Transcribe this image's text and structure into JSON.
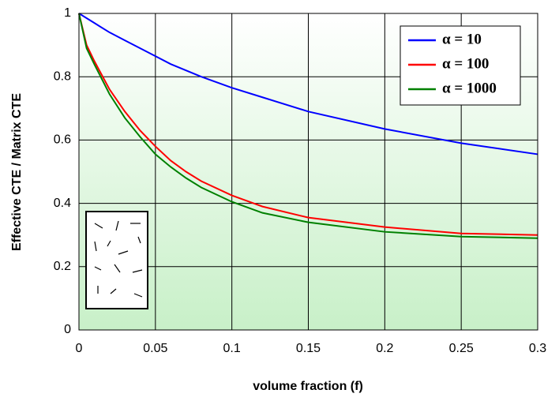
{
  "chart_data": {
    "type": "line",
    "x_label": "volume fraction (f)",
    "y_label": "Effective CTE / Matrix CTE",
    "x": [
      0,
      0.005,
      0.01,
      0.02,
      0.03,
      0.04,
      0.05,
      0.06,
      0.07,
      0.08,
      0.1,
      0.12,
      0.15,
      0.2,
      0.25,
      0.3
    ],
    "series": [
      {
        "name": "α = 10",
        "color": "#0000ff",
        "values": [
          1,
          0.985,
          0.97,
          0.94,
          0.915,
          0.89,
          0.865,
          0.84,
          0.82,
          0.8,
          0.765,
          0.735,
          0.69,
          0.635,
          0.59,
          0.555
        ]
      },
      {
        "name": "α = 100",
        "color": "#ff0000",
        "values": [
          1,
          0.9,
          0.85,
          0.76,
          0.69,
          0.63,
          0.58,
          0.535,
          0.5,
          0.47,
          0.425,
          0.39,
          0.355,
          0.325,
          0.305,
          0.3
        ]
      },
      {
        "name": "α = 1000",
        "color": "#008000",
        "values": [
          1,
          0.89,
          0.84,
          0.745,
          0.67,
          0.61,
          0.555,
          0.515,
          0.48,
          0.45,
          0.405,
          0.37,
          0.34,
          0.31,
          0.295,
          0.29
        ]
      }
    ],
    "xlim": [
      0,
      0.3
    ],
    "xticks": [
      0,
      0.05,
      0.1,
      0.15,
      0.2,
      0.25,
      0.3
    ],
    "ylim": [
      0,
      1
    ],
    "yticks": [
      0,
      0.2,
      0.4,
      0.6,
      0.8,
      1
    ],
    "grid": true,
    "legend": "upper right"
  }
}
